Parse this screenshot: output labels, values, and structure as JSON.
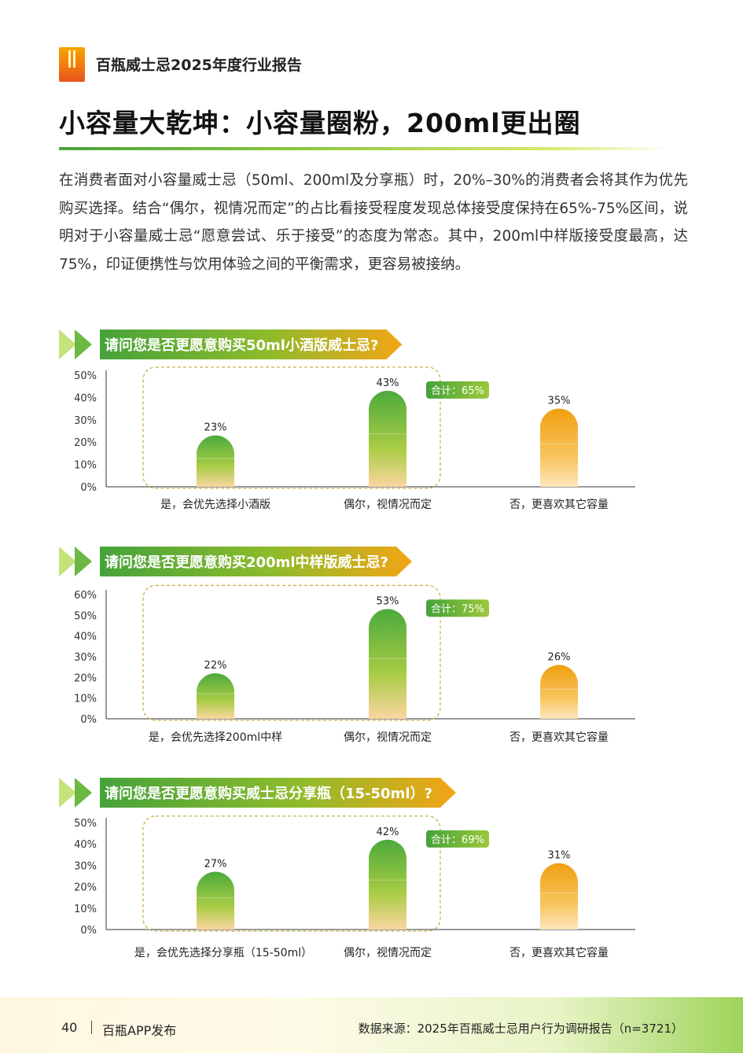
{
  "header": {
    "report_name": "百瓶威士忌2025年度行业报告"
  },
  "page_title": "小容量大乾坤：小容量圈粉，200ml更出圈",
  "intro": "在消费者面对小容量威士忌（50ml、200ml及分享瓶）时，20%–30%的消费者会将其作为优先购买选择。结合“偶尔，视情况而定”的占比看接受程度发现总体接受度保持在65%-75%区间，说明对于小容量威士忌“愿意尝试、乐于接受”的态度为常态。其中，200ml中样版接受度最高，达75%，印证便携性与饮用体验之间的平衡需求，更容易被接纳。",
  "colors": {
    "green": "#46a23b",
    "orange": "#f2a516",
    "dash": "#c8b24a"
  },
  "questions": [
    {
      "title": "请问您是否更愿意购买50ml小酒版威士忌?"
    },
    {
      "title": "请问您是否更愿意购买200ml中样版威士忌?"
    },
    {
      "title": "请问您是否更愿意购买威士忌分享瓶（15-50ml）?"
    }
  ],
  "chart_data": [
    {
      "type": "bar",
      "categories": [
        "是，会优先选择小酒版",
        "偶尔，视情况而定",
        "否，更喜欢其它容量"
      ],
      "values": [
        23,
        43,
        35
      ],
      "value_labels": [
        "23%",
        "43%",
        "35%"
      ],
      "ylim": [
        0,
        50
      ],
      "yticks": [
        "0%",
        "10%",
        "20%",
        "30%",
        "40%",
        "50%"
      ],
      "annotation": "合计：65%"
    },
    {
      "type": "bar",
      "categories": [
        "是，会优先选择200ml中样",
        "偶尔，视情况而定",
        "否，更喜欢其它容量"
      ],
      "values": [
        22,
        53,
        26
      ],
      "value_labels": [
        "22%",
        "53%",
        "26%"
      ],
      "ylim": [
        0,
        60
      ],
      "yticks": [
        "0%",
        "10%",
        "20%",
        "30%",
        "40%",
        "50%",
        "60%"
      ],
      "annotation": "合计：75%"
    },
    {
      "type": "bar",
      "categories": [
        "是，会优先选择分享瓶（15-50ml）",
        "偶尔，视情况而定",
        "否，更喜欢其它容量"
      ],
      "values": [
        27,
        42,
        31
      ],
      "value_labels": [
        "27%",
        "42%",
        "31%"
      ],
      "ylim": [
        0,
        50
      ],
      "yticks": [
        "0%",
        "10%",
        "20%",
        "30%",
        "40%",
        "50%"
      ],
      "annotation": "合计：69%"
    }
  ],
  "footer": {
    "page_number": "40",
    "publisher": "百瓶APP发布",
    "source": "数据来源：2025年百瓶威士忌用户行为调研报告（n=3721）"
  }
}
